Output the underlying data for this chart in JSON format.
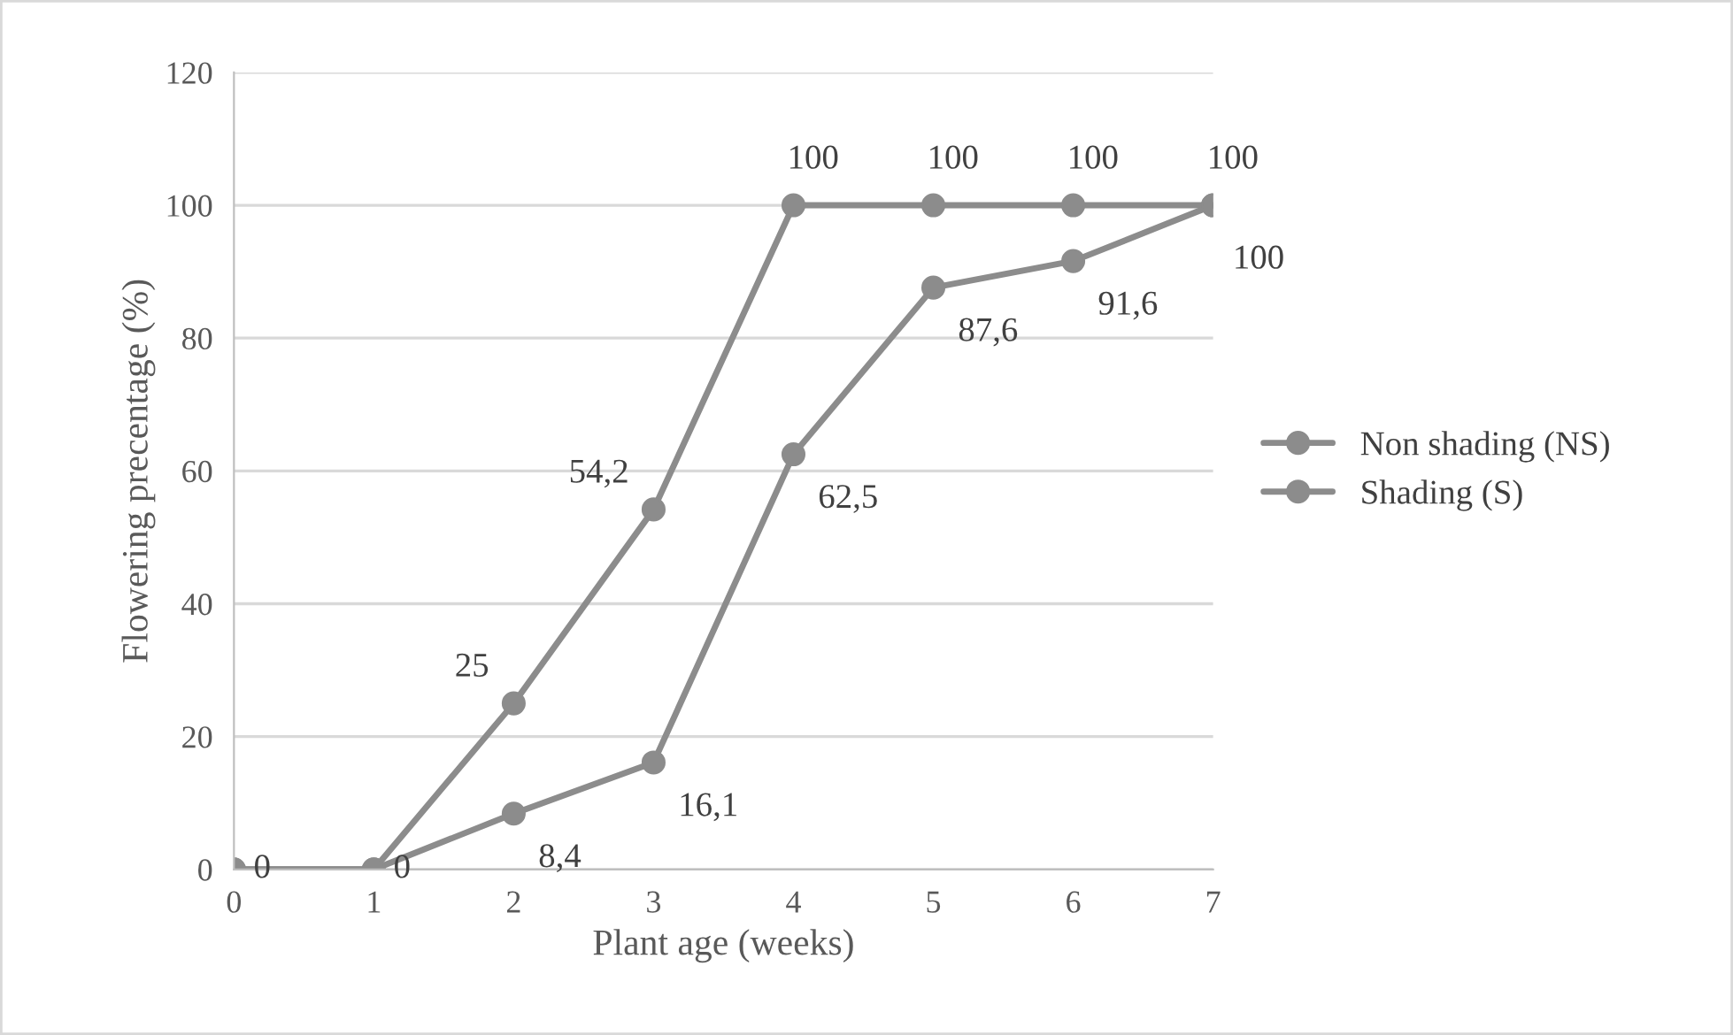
{
  "chart_data": {
    "type": "line",
    "xlabel": "Plant age (weeks)",
    "ylabel": "Flowering precentage (%)",
    "x": [
      0,
      1,
      2,
      3,
      4,
      5,
      6,
      7
    ],
    "series": [
      {
        "name": "Non shading (NS)",
        "color": "#8c8c8c",
        "values": [
          0,
          0,
          25,
          54.2,
          100,
          100,
          100,
          100
        ],
        "value_labels": [
          "0",
          "0",
          "25",
          "54,2",
          "100",
          "100",
          "100",
          "100"
        ]
      },
      {
        "name": "Shading (S)",
        "color": "#8c8c8c",
        "values": [
          0,
          0,
          8.4,
          16.1,
          62.5,
          87.6,
          91.6,
          100
        ],
        "value_labels": [
          null,
          null,
          "8,4",
          "16,1",
          "62,5",
          "87,6",
          "91,6",
          "100"
        ]
      }
    ],
    "xlim": [
      0,
      7
    ],
    "xticks": [
      0,
      1,
      2,
      3,
      4,
      5,
      6,
      7
    ],
    "ylim": [
      0,
      120
    ],
    "yticks": [
      0,
      20,
      40,
      60,
      80,
      100,
      120
    ],
    "grid": "y",
    "legend": "right",
    "marker": "circle",
    "line_style": "solid"
  }
}
